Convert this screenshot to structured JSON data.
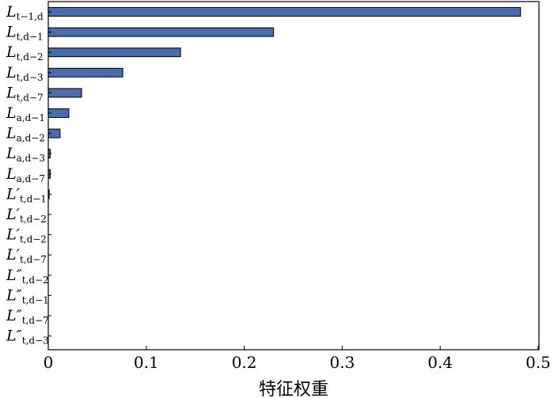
{
  "chart_data": {
    "type": "bar",
    "orientation": "horizontal",
    "xlabel": "特征权重",
    "ylabel": "",
    "xlim": [
      0,
      0.5
    ],
    "xticks": [
      "0",
      "0.1",
      "0.2",
      "0.3",
      "0.4",
      "0.5"
    ],
    "bar_color": "#4a6ca8",
    "grid": false,
    "categories": [
      {
        "main": "L",
        "prime": "",
        "sub": "t−1,d"
      },
      {
        "main": "L",
        "prime": "",
        "sub": "t,d−1"
      },
      {
        "main": "L",
        "prime": "",
        "sub": "t,d−2"
      },
      {
        "main": "L",
        "prime": "",
        "sub": "t,d−3"
      },
      {
        "main": "L",
        "prime": "",
        "sub": "t,d−7"
      },
      {
        "main": "L",
        "prime": "",
        "sub": "a,d−1"
      },
      {
        "main": "L",
        "prime": "",
        "sub": "a,d−2"
      },
      {
        "main": "L",
        "prime": "",
        "sub": "a,d−3"
      },
      {
        "main": "L",
        "prime": "",
        "sub": "a,d−7"
      },
      {
        "main": "L",
        "prime": "′",
        "sub": "t,d−1"
      },
      {
        "main": "L",
        "prime": "′",
        "sub": "t,d−2"
      },
      {
        "main": "L",
        "prime": "′",
        "sub": "t,d−2"
      },
      {
        "main": "L",
        "prime": "′",
        "sub": "t,d−7"
      },
      {
        "main": "L",
        "prime": "″",
        "sub": "t,d−2"
      },
      {
        "main": "L",
        "prime": "″",
        "sub": "t,d−1"
      },
      {
        "main": "L",
        "prime": "″",
        "sub": "t,d−7"
      },
      {
        "main": "L",
        "prime": "″",
        "sub": "t,d−3"
      }
    ],
    "values": [
      0.482,
      0.23,
      0.135,
      0.076,
      0.034,
      0.021,
      0.012,
      0.002,
      0.002,
      0.001,
      0,
      0,
      0,
      0,
      0,
      0,
      0
    ]
  }
}
